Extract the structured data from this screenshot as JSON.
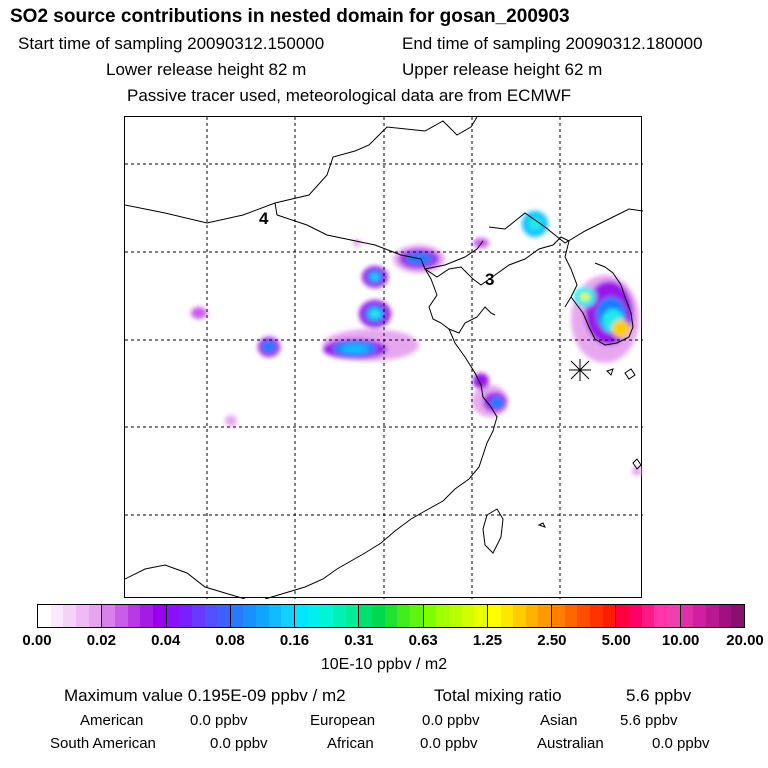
{
  "header": {
    "title": "SO2 source contributions in nested domain for gosan_200903",
    "start_time": "Start time of sampling 20090312.150000",
    "end_time": "End time of sampling 20090312.180000",
    "lower_height": "Lower release height   82 m",
    "upper_height": "Upper release height   62 m",
    "note": "Passive tracer used, meteorological data are from ECMWF"
  },
  "map": {
    "region_labels": [
      "4",
      "3"
    ],
    "receptor_marker": "asterisk-icon"
  },
  "colorbar": {
    "ticks": [
      "0.00",
      "0.02",
      "0.04",
      "0.08",
      "0.16",
      "0.31",
      "0.63",
      "1.25",
      "2.50",
      "5.00",
      "10.00",
      "20.00"
    ],
    "unit": "10E-10 ppbv / m2",
    "bins": [
      [
        "#ffffff",
        "#fbe9fb",
        "#f5d2f7",
        "#f0baf3",
        "#e9a4f0"
      ],
      [
        "#d780ee",
        "#c95ce9",
        "#b83ae6",
        "#a51be6",
        "#9900ee"
      ],
      [
        "#8a10ff",
        "#7a20ff",
        "#6a38ff",
        "#5550ff",
        "#4060ff"
      ],
      [
        "#2a7aff",
        "#1a90ff",
        "#10a5ff",
        "#10bbff",
        "#10d0ff"
      ],
      [
        "#00e6ff",
        "#00f0f0",
        "#00f5d5",
        "#00f0b5",
        "#00ee99"
      ],
      [
        "#00e070",
        "#00d850",
        "#20e030",
        "#40ee20",
        "#60f510"
      ],
      [
        "#80ff00",
        "#a0ff00",
        "#b8ff00",
        "#d0ff00",
        "#e8ff00"
      ],
      [
        "#ffff00",
        "#ffe600",
        "#ffcc00",
        "#ffb300",
        "#ff9900"
      ],
      [
        "#ff8000",
        "#ff6600",
        "#ff4d00",
        "#ff3300",
        "#ff1a00"
      ],
      [
        "#ff0040",
        "#ff0066",
        "#ff1a88",
        "#ff33aa",
        "#f040b0"
      ],
      [
        "#e030a8",
        "#d020a0",
        "#b81890",
        "#a01080",
        "#881070"
      ]
    ]
  },
  "summary": {
    "max_label": "Maximum value  0.195E-09 ppbv / m2",
    "total_label": "Total mixing ratio",
    "total_value": "5.6 ppbv",
    "rows": [
      [
        {
          "name": "American",
          "value": "0.0 ppbv"
        },
        {
          "name": "European",
          "value": "0.0 ppbv"
        },
        {
          "name": "Asian",
          "value": "5.6 ppbv"
        }
      ],
      [
        {
          "name": "South American",
          "value": "0.0 ppbv"
        },
        {
          "name": "African",
          "value": "0.0 ppbv"
        },
        {
          "name": "Australian",
          "value": "0.0 ppbv"
        }
      ]
    ]
  }
}
